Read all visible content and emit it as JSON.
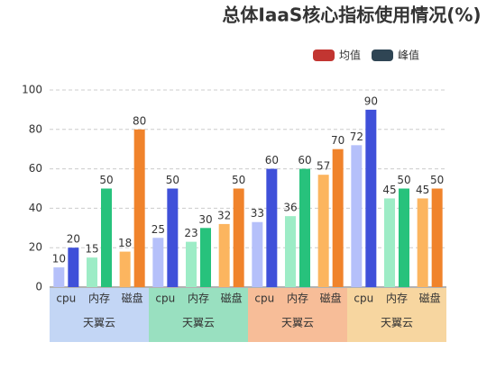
{
  "chart_data": {
    "type": "bar",
    "title": "总体IaaS核心指标使用情况(%)",
    "categories": [
      "cpu",
      "内存",
      "磁盘",
      "cpu",
      "内存",
      "磁盘",
      "cpu",
      "内存",
      "磁盘",
      "cpu",
      "内存",
      "磁盘"
    ],
    "groups": [
      {
        "name": "天翼云",
        "color": "#c3d6f5"
      },
      {
        "name": "天翼云",
        "color": "#99e0c0"
      },
      {
        "name": "天翼云",
        "color": "#f7bd98"
      },
      {
        "name": "天翼云",
        "color": "#f7d6a0"
      }
    ],
    "series": [
      {
        "name": "均值",
        "color": "#c23531",
        "bar_colors": [
          "#b5c0fa",
          "#9decc6",
          "#fcb55f",
          "#b5c0fa",
          "#9decc6",
          "#fcb55f",
          "#b5c0fa",
          "#9decc6",
          "#fcb55f",
          "#b5c0fa",
          "#9decc6",
          "#fcb55f"
        ],
        "values": [
          10,
          15,
          18,
          25,
          23,
          32,
          33,
          36,
          57,
          72,
          45,
          45
        ]
      },
      {
        "name": "峰值",
        "color": "#2f4554",
        "bar_colors": [
          "#3f50d9",
          "#27c27c",
          "#f0832b",
          "#3f50d9",
          "#27c27c",
          "#f0832b",
          "#3f50d9",
          "#27c27c",
          "#f0832b",
          "#3f50d9",
          "#27c27c",
          "#f0832b"
        ],
        "values": [
          20,
          50,
          80,
          50,
          30,
          50,
          60,
          60,
          70,
          90,
          50,
          50
        ]
      }
    ],
    "ylim": [
      0,
      100
    ],
    "yticks": [
      0,
      20,
      40,
      60,
      80,
      100
    ],
    "grid": true
  }
}
